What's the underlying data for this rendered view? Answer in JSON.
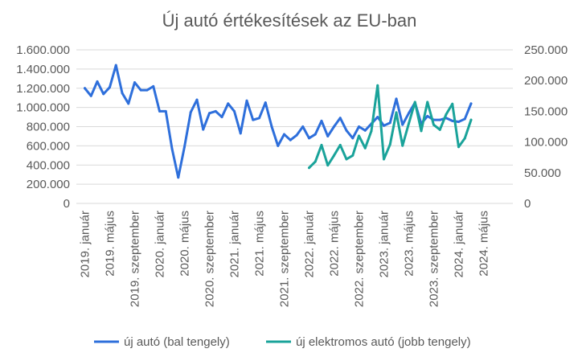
{
  "chart_data": {
    "type": "line",
    "title": "Új autó értékesítések az EU-ban",
    "x_tick_labels": [
      "2019. január",
      "2019. május",
      "2019. szeptember",
      "2020. január",
      "2020. május",
      "2020. szeptember",
      "2021. január",
      "2021. május",
      "2021. szeptember",
      "2022. január",
      "2022. május",
      "2022. szeptember",
      "2023. január",
      "2023. május",
      "2023. szeptember",
      "2024. január",
      "2024. május"
    ],
    "x_start": "2019-01",
    "y_left": {
      "min": 0,
      "max": 1600000,
      "tick_labels": [
        "0",
        "200.000",
        "400.000",
        "600.000",
        "800.000",
        "1.000.000",
        "1.200.000",
        "1.400.000",
        "1.600.000"
      ]
    },
    "y_right": {
      "min": 0,
      "max": 250000,
      "tick_labels": [
        "0",
        "50.000",
        "100.000",
        "150.000",
        "200.000",
        "250.000"
      ]
    },
    "grid": true,
    "legend_position": "bottom",
    "series": [
      {
        "name": "új autó (bal tengely)",
        "axis": "left",
        "color": "#2e6fdb",
        "start": "2019-01",
        "values": [
          1200000,
          1120000,
          1270000,
          1140000,
          1210000,
          1440000,
          1150000,
          1040000,
          1260000,
          1180000,
          1180000,
          1220000,
          960000,
          960000,
          570000,
          270000,
          590000,
          950000,
          1080000,
          770000,
          940000,
          960000,
          900000,
          1040000,
          960000,
          730000,
          1070000,
          870000,
          890000,
          1050000,
          800000,
          600000,
          720000,
          660000,
          710000,
          800000,
          680000,
          720000,
          860000,
          700000,
          800000,
          890000,
          760000,
          680000,
          800000,
          760000,
          830000,
          900000,
          810000,
          840000,
          1090000,
          820000,
          940000,
          1050000,
          830000,
          910000,
          870000,
          870000,
          890000,
          860000,
          850000,
          880000,
          1040000
        ]
      },
      {
        "name": "új elektromos autó (jobb tengely)",
        "axis": "right",
        "color": "#1aa39a",
        "start": "2022-01",
        "values": [
          58000,
          68000,
          95000,
          62000,
          78000,
          95000,
          72000,
          78000,
          110000,
          90000,
          118000,
          192000,
          72000,
          96000,
          148000,
          94000,
          130000,
          165000,
          118000,
          165000,
          128000,
          120000,
          145000,
          162000,
          92000,
          106000,
          136000
        ]
      }
    ]
  }
}
